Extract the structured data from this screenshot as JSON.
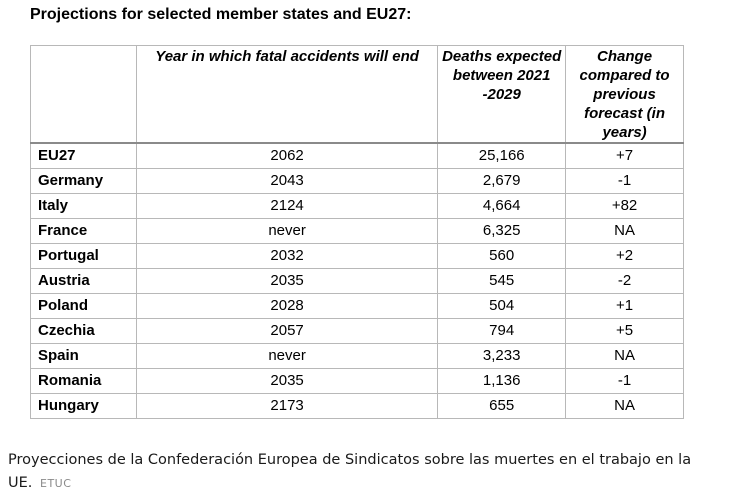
{
  "heading": "Projections for selected member states and EU27:",
  "table": {
    "headers": {
      "country": "",
      "year": "Year in which fatal accidents will end",
      "deaths": "Deaths expected between 2021 -2029",
      "change": "Change compared to previous forecast (in years)"
    },
    "rows": [
      {
        "country": "EU27",
        "year": "2062",
        "deaths": "25,166",
        "change": "+7"
      },
      {
        "country": "Germany",
        "year": "2043",
        "deaths": "2,679",
        "change": "-1"
      },
      {
        "country": "Italy",
        "year": "2124",
        "deaths": "4,664",
        "change": "+82"
      },
      {
        "country": "France",
        "year": "never",
        "deaths": "6,325",
        "change": "NA"
      },
      {
        "country": "Portugal",
        "year": "2032",
        "deaths": "560",
        "change": "+2"
      },
      {
        "country": "Austria",
        "year": "2035",
        "deaths": "545",
        "change": "-2"
      },
      {
        "country": "Poland",
        "year": "2028",
        "deaths": "504",
        "change": "+1"
      },
      {
        "country": "Czechia",
        "year": "2057",
        "deaths": "794",
        "change": "+5"
      },
      {
        "country": "Spain",
        "year": "never",
        "deaths": "3,233",
        "change": "NA"
      },
      {
        "country": "Romania",
        "year": "2035",
        "deaths": "1,136",
        "change": "-1"
      },
      {
        "country": "Hungary",
        "year": "2173",
        "deaths": "655",
        "change": "NA"
      }
    ]
  },
  "caption": {
    "text": "Proyecciones de la Confederación Europea de Sindicatos sobre las muertes en el trabajo en la UE.",
    "source": "ETUC"
  }
}
